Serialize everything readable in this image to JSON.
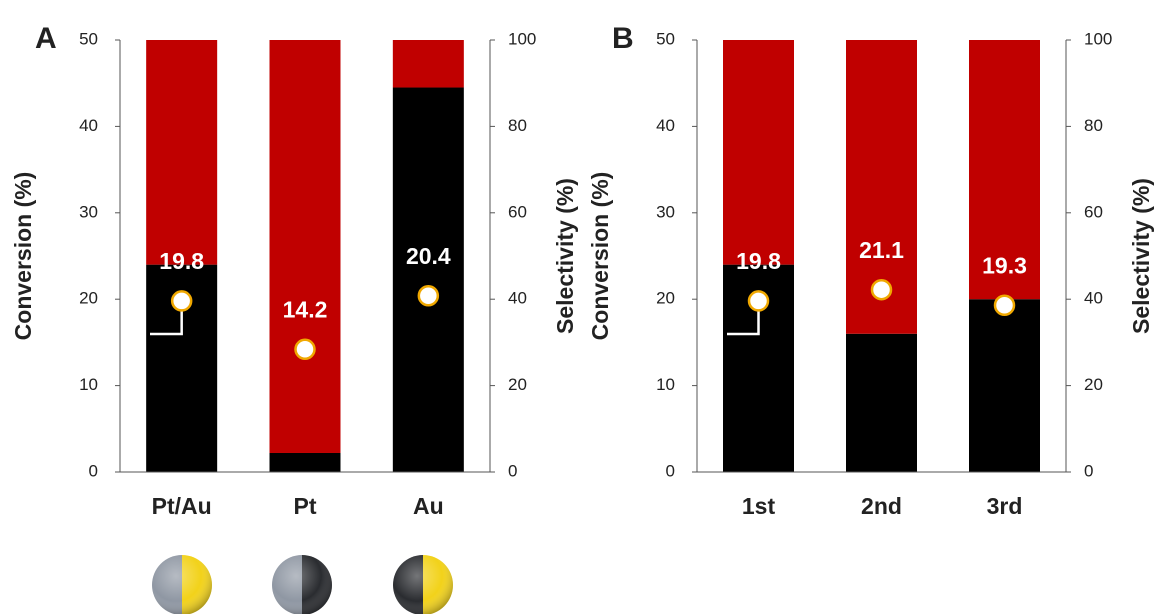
{
  "chart_data": [
    {
      "type": "bar",
      "panel_label": "A",
      "categories": [
        "Pt/Au",
        "Pt",
        "Au"
      ],
      "ylabel": "Conversion (%)",
      "y2label": "Selectivity (%)",
      "ylim": [
        0,
        50
      ],
      "yticks": [
        0,
        10,
        20,
        30,
        40,
        50
      ],
      "y2lim": [
        0,
        100
      ],
      "y2ticks": [
        0,
        20,
        40,
        60,
        80,
        100
      ],
      "series": [
        {
          "color": "#000000",
          "axis": "y2",
          "values": [
            48,
            4.4,
            89
          ]
        },
        {
          "color": "#c00000",
          "axis": "y2",
          "values": [
            52,
            95.6,
            11
          ]
        },
        {
          "type": "scatter",
          "color": "#ffffff",
          "edgecolor": "#f0a800",
          "axis": "y",
          "values": [
            19.8,
            14.2,
            20.4
          ]
        }
      ]
    },
    {
      "type": "bar",
      "panel_label": "B",
      "categories": [
        "1st",
        "2nd",
        "3rd"
      ],
      "ylabel": "Conversion (%)",
      "y2label": "Selectivity (%)",
      "ylim": [
        0,
        50
      ],
      "yticks": [
        0,
        10,
        20,
        30,
        40,
        50
      ],
      "y2lim": [
        0,
        100
      ],
      "y2ticks": [
        0,
        20,
        40,
        60,
        80,
        100
      ],
      "series": [
        {
          "color": "#000000",
          "axis": "y2",
          "values": [
            48,
            32,
            40
          ]
        },
        {
          "color": "#c00000",
          "axis": "y2",
          "values": [
            52,
            68,
            60
          ]
        },
        {
          "type": "scatter",
          "color": "#ffffff",
          "edgecolor": "#f0a800",
          "axis": "y",
          "values": [
            19.8,
            21.1,
            19.3
          ]
        }
      ]
    }
  ]
}
